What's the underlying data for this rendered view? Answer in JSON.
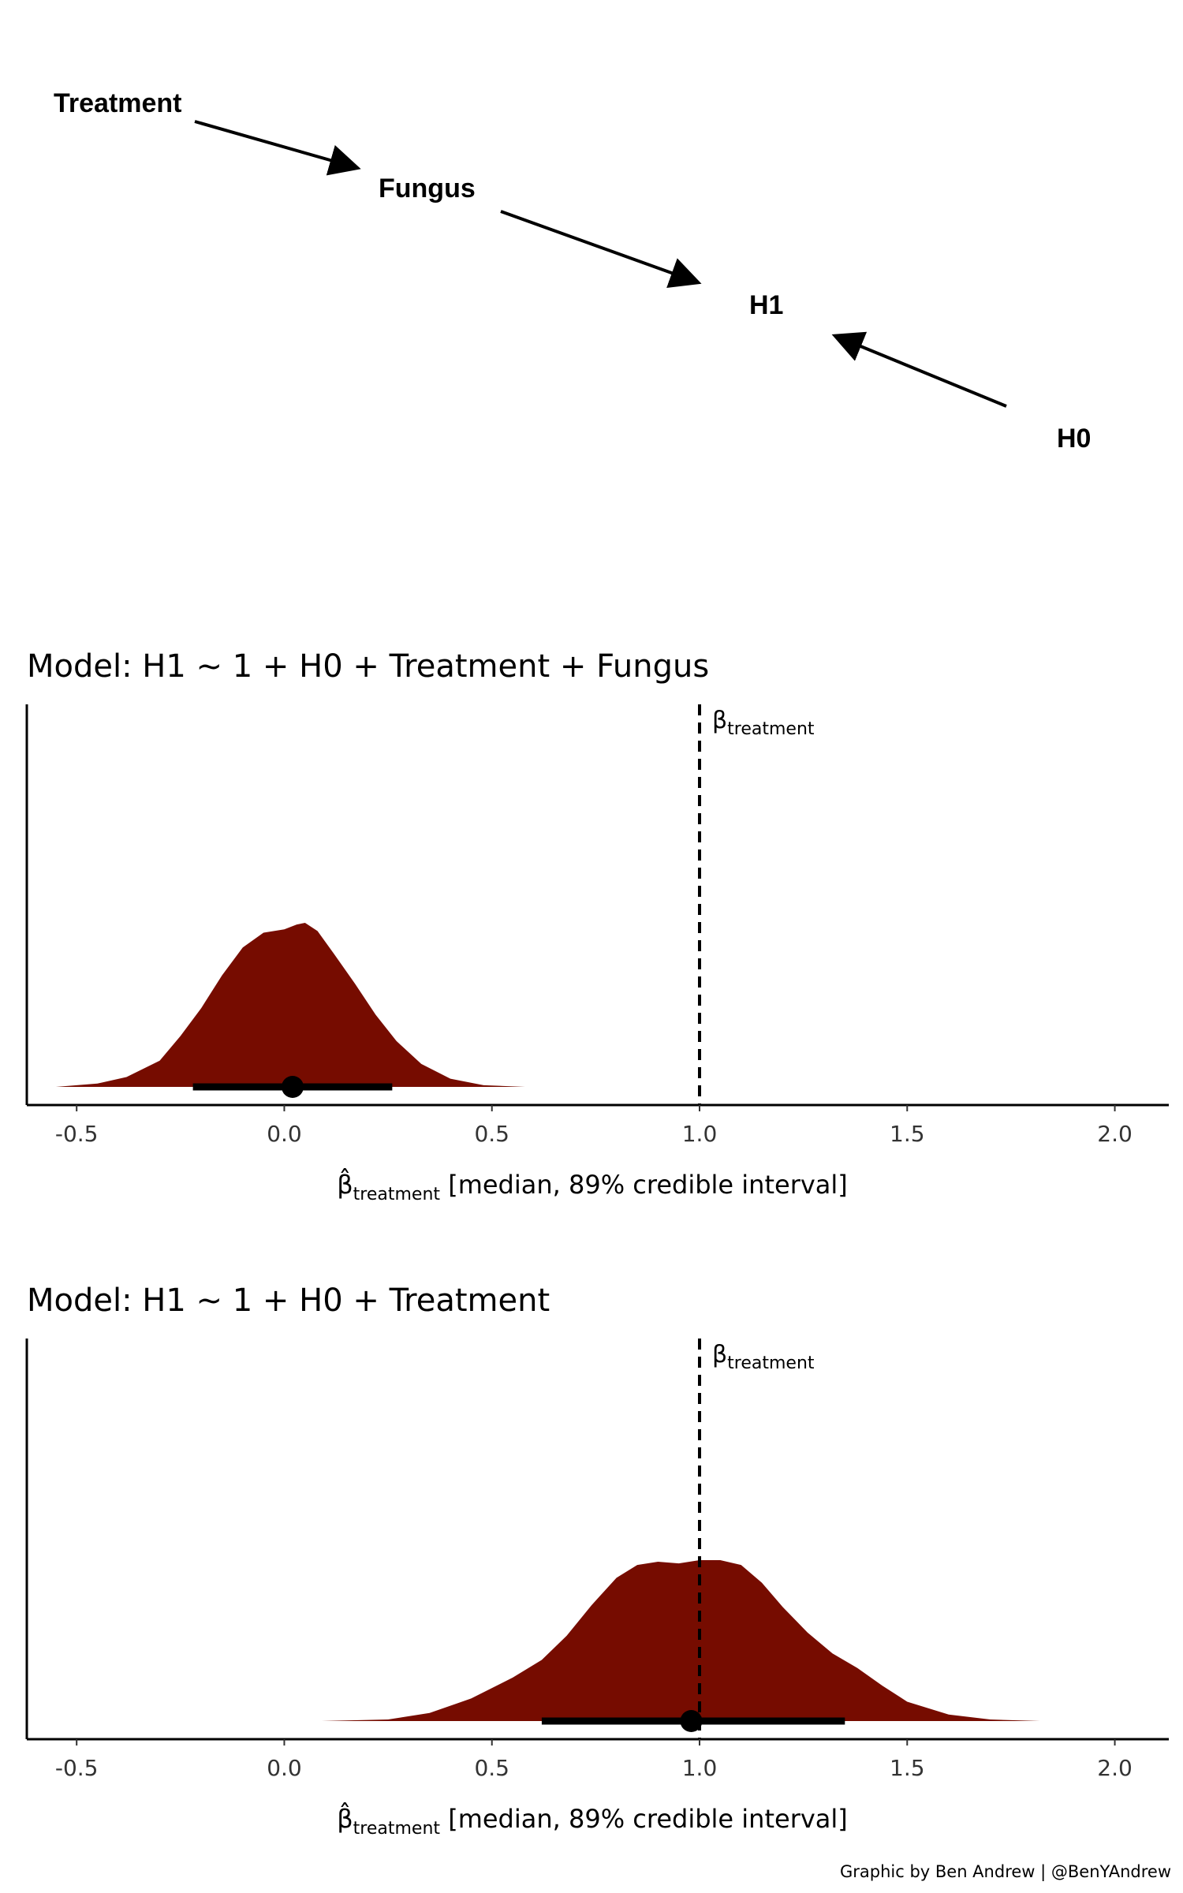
{
  "dag": {
    "nodes": [
      {
        "id": "treatment",
        "label": "Treatment"
      },
      {
        "id": "fungus",
        "label": "Fungus"
      },
      {
        "id": "h1",
        "label": "H1"
      },
      {
        "id": "h0",
        "label": "H0"
      }
    ],
    "edges": [
      {
        "from": "treatment",
        "to": "fungus"
      },
      {
        "from": "fungus",
        "to": "h1"
      },
      {
        "from": "h0",
        "to": "h1"
      }
    ]
  },
  "chart_data": [
    {
      "type": "area",
      "title": "Model: H1 ~ 1 + H0 + Treatment + Fungus",
      "xlabel_main": "β̂",
      "xlabel_sub": "treatment",
      "xlabel_rest": " [median, 89% credible interval]",
      "xlim": [
        -0.62,
        2.13
      ],
      "xticks": [
        -0.5,
        0.0,
        0.5,
        1.0,
        1.5,
        2.0
      ],
      "xtick_labels": [
        "-0.5",
        "0.0",
        "0.5",
        "1.0",
        "1.5",
        "2.0"
      ],
      "reference_line": {
        "x": 1.0,
        "label": "β",
        "label_sub": "treatment",
        "style": "dashed"
      },
      "density_x": [
        -0.55,
        -0.45,
        -0.38,
        -0.3,
        -0.25,
        -0.2,
        -0.15,
        -0.1,
        -0.05,
        0.0,
        0.03,
        0.05,
        0.08,
        0.12,
        0.17,
        0.22,
        0.27,
        0.33,
        0.4,
        0.48,
        0.58
      ],
      "density_y": [
        0.0,
        0.02,
        0.06,
        0.16,
        0.31,
        0.48,
        0.68,
        0.85,
        0.94,
        0.96,
        0.99,
        1.0,
        0.95,
        0.81,
        0.63,
        0.44,
        0.28,
        0.14,
        0.05,
        0.01,
        0.0
      ],
      "median": 0.02,
      "interval_89": [
        -0.22,
        0.26
      ],
      "fill_color": "#760c00"
    },
    {
      "type": "area",
      "title": "Model: H1 ~ 1 + H0 + Treatment",
      "xlabel_main": "β̂",
      "xlabel_sub": "treatment",
      "xlabel_rest": " [median, 89% credible interval]",
      "xlim": [
        -0.62,
        2.13
      ],
      "xticks": [
        -0.5,
        0.0,
        0.5,
        1.0,
        1.5,
        2.0
      ],
      "xtick_labels": [
        "-0.5",
        "0.0",
        "0.5",
        "1.0",
        "1.5",
        "2.0"
      ],
      "reference_line": {
        "x": 1.0,
        "label": "β",
        "label_sub": "treatment",
        "style": "dashed"
      },
      "density_x": [
        0.09,
        0.25,
        0.35,
        0.45,
        0.55,
        0.62,
        0.68,
        0.74,
        0.8,
        0.85,
        0.9,
        0.95,
        1.0,
        1.05,
        1.1,
        1.15,
        1.2,
        1.26,
        1.32,
        1.38,
        1.44,
        1.5,
        1.6,
        1.7,
        1.82
      ],
      "density_y": [
        0.0,
        0.01,
        0.05,
        0.14,
        0.27,
        0.38,
        0.53,
        0.72,
        0.89,
        0.97,
        0.99,
        0.98,
        1.0,
        1.0,
        0.97,
        0.86,
        0.71,
        0.55,
        0.42,
        0.33,
        0.22,
        0.12,
        0.04,
        0.01,
        0.0
      ],
      "median": 0.98,
      "interval_89": [
        0.62,
        1.35
      ],
      "fill_color": "#760c00"
    }
  ],
  "credit": "Graphic by Ben Andrew | @BenYAndrew"
}
